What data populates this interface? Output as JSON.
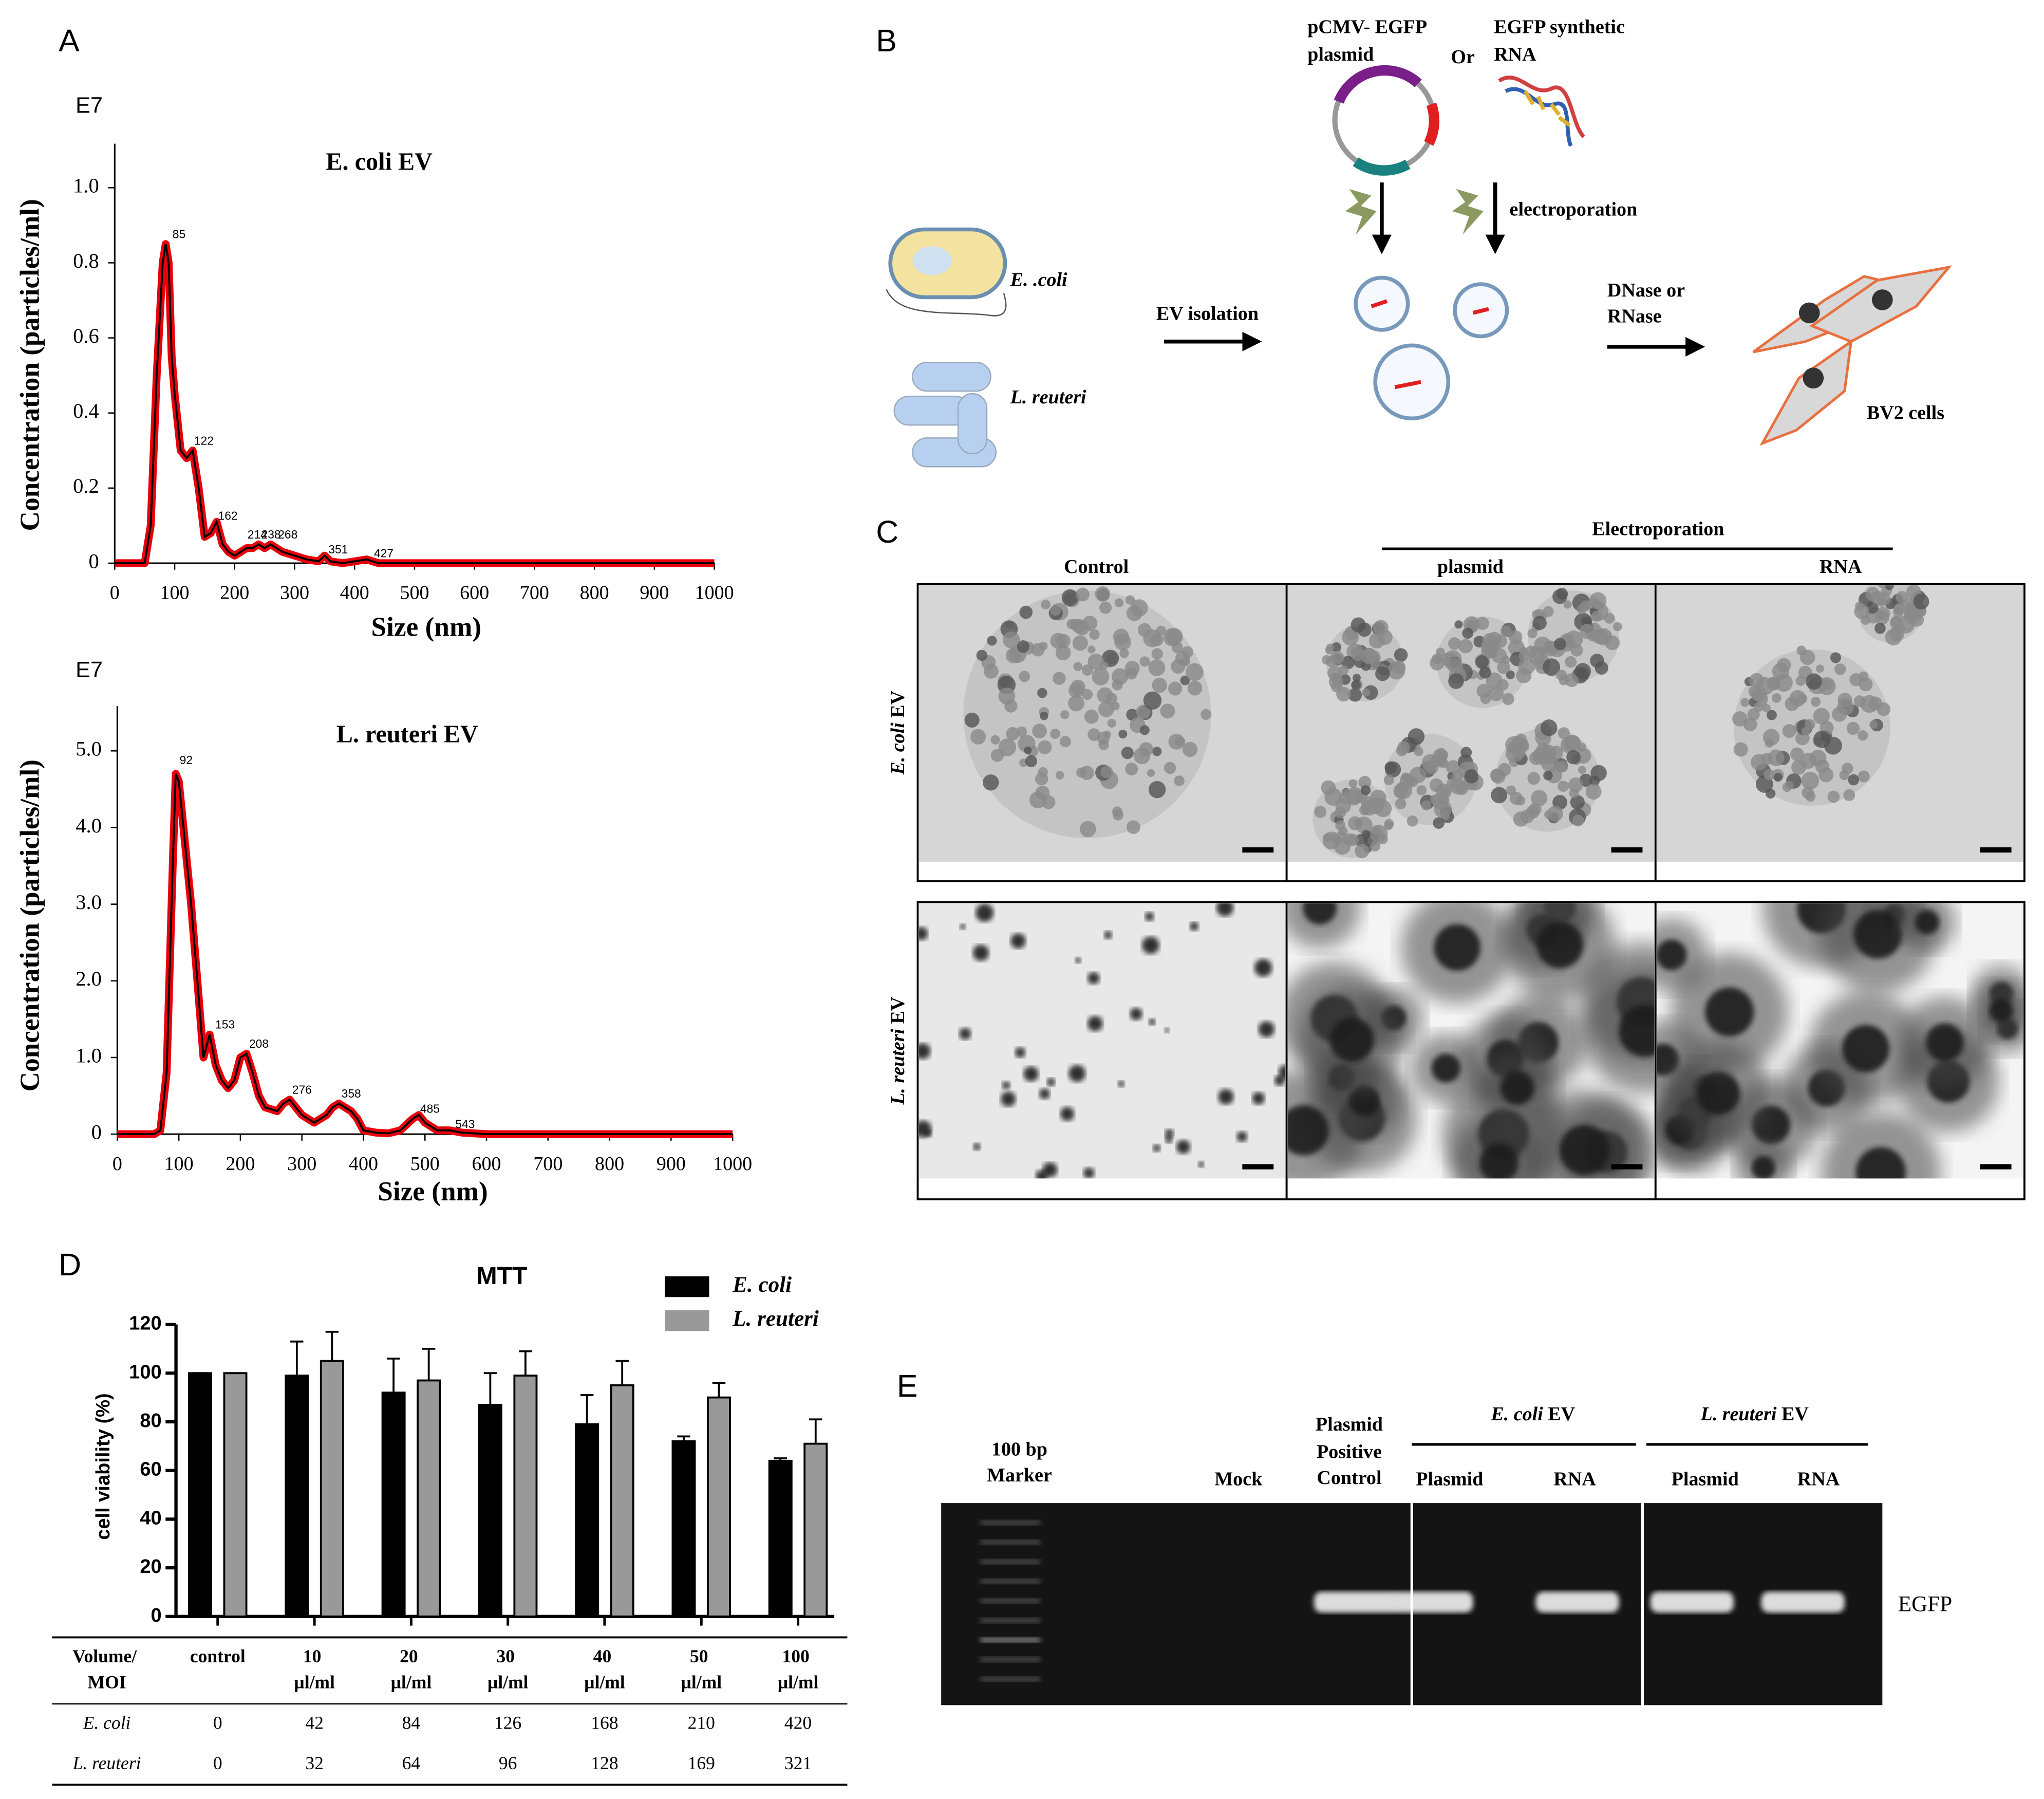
{
  "panel_a": "A",
  "panel_d": "D",
  "chart_data": [
    {
      "type": "line",
      "multiplier": "E7",
      "title": "E. coli EV",
      "xlabel": "Size (nm)",
      "ylabel": "Concentration (particles/ml)",
      "x": [
        0,
        50,
        60,
        70,
        80,
        85,
        90,
        95,
        100,
        110,
        120,
        130,
        140,
        150,
        160,
        170,
        180,
        190,
        200,
        210,
        220,
        230,
        240,
        250,
        260,
        270,
        280,
        300,
        320,
        340,
        350,
        360,
        380,
        400,
        420,
        430,
        440,
        460,
        500,
        600,
        1000
      ],
      "series": [
        {
          "color": "#000000",
          "band_color": "#e8000b",
          "values": [
            0,
            0,
            0.1,
            0.5,
            0.8,
            0.85,
            0.8,
            0.55,
            0.45,
            0.3,
            0.28,
            0.3,
            0.2,
            0.07,
            0.08,
            0.11,
            0.05,
            0.03,
            0.02,
            0.03,
            0.04,
            0.04,
            0.05,
            0.04,
            0.05,
            0.04,
            0.03,
            0.02,
            0.01,
            0.005,
            0.02,
            0.005,
            0,
            0.005,
            0.01,
            0.005,
            0,
            0,
            0,
            0,
            0
          ]
        }
      ],
      "annotations": [
        {
          "text": "85",
          "x": 92,
          "y": 0.86
        },
        {
          "text": "122",
          "x": 128,
          "y": 0.31
        },
        {
          "text": "162",
          "x": 168,
          "y": 0.11
        },
        {
          "text": "214",
          "x": 217,
          "y": 0.06
        },
        {
          "text": "238",
          "x": 240,
          "y": 0.06
        },
        {
          "text": "268",
          "x": 268,
          "y": 0.06
        },
        {
          "text": "351",
          "x": 352,
          "y": 0.02
        },
        {
          "text": "427",
          "x": 428,
          "y": 0.01
        }
      ],
      "xlim": [
        0,
        1000
      ],
      "xticks": [
        0,
        100,
        200,
        300,
        400,
        500,
        600,
        700,
        800,
        900,
        1000
      ],
      "ylim": [
        0,
        1.1
      ],
      "yticks": [
        0,
        0.2,
        0.4,
        0.6,
        0.8,
        {
          "value": 1,
          "label": "1.0"
        }
      ]
    },
    {
      "type": "line",
      "multiplier": "E7",
      "title": "L. reuteri EV",
      "xlabel": "Size (nm)",
      "ylabel": "Concentration (particles/ml)",
      "x": [
        0,
        60,
        70,
        80,
        90,
        95,
        100,
        110,
        120,
        130,
        140,
        150,
        160,
        170,
        180,
        190,
        200,
        210,
        220,
        230,
        240,
        260,
        270,
        280,
        290,
        300,
        320,
        340,
        350,
        360,
        380,
        390,
        400,
        420,
        440,
        460,
        480,
        490,
        500,
        520,
        540,
        560,
        600,
        1000
      ],
      "series": [
        {
          "color": "#000000",
          "band_color": "#e8000b",
          "values": [
            0,
            0,
            0.05,
            0.8,
            3.5,
            4.7,
            4.6,
            3.8,
            3.0,
            2.0,
            1.0,
            1.3,
            0.9,
            0.7,
            0.6,
            0.7,
            1.0,
            1.05,
            0.8,
            0.5,
            0.35,
            0.3,
            0.4,
            0.45,
            0.35,
            0.25,
            0.15,
            0.25,
            0.35,
            0.4,
            0.3,
            0.2,
            0.05,
            0.02,
            0.01,
            0.05,
            0.2,
            0.25,
            0.15,
            0.05,
            0.05,
            0.02,
            0,
            0
          ]
        }
      ],
      "annotations": [
        {
          "text": "92",
          "x": 97,
          "y": 4.8
        },
        {
          "text": "153",
          "x": 155,
          "y": 1.35
        },
        {
          "text": "208",
          "x": 210,
          "y": 1.1
        },
        {
          "text": "276",
          "x": 280,
          "y": 0.5
        },
        {
          "text": "358",
          "x": 360,
          "y": 0.45
        },
        {
          "text": "485",
          "x": 488,
          "y": 0.25
        },
        {
          "text": "543",
          "x": 545,
          "y": 0.05
        }
      ],
      "xlim": [
        0,
        1000
      ],
      "xticks": [
        0,
        100,
        200,
        300,
        400,
        500,
        600,
        700,
        800,
        900,
        1000
      ],
      "ylim": [
        0,
        5.5
      ],
      "yticks": [
        0,
        {
          "value": 1,
          "label": "1.0"
        },
        {
          "value": 2,
          "label": "2.0"
        },
        {
          "value": 3,
          "label": "3.0"
        },
        {
          "value": 4,
          "label": "4.0"
        },
        {
          "value": 5,
          "label": "5.0"
        }
      ]
    },
    {
      "type": "bar",
      "title": "MTT",
      "ylabel": "cell viability (%)",
      "categories": [
        "control",
        "10 µl/ml",
        "20 µl/ml",
        "30 µl/ml",
        "40 µl/ml",
        "50 µl/ml",
        "100 µl/ml"
      ],
      "series": [
        {
          "name": "E. coli",
          "color": "#000000",
          "values": [
            100,
            99,
            92,
            87,
            79,
            72,
            64
          ],
          "errors": [
            0,
            14,
            14,
            13,
            12,
            2,
            1
          ]
        },
        {
          "name": "L. reuteri",
          "color": "#999999",
          "values": [
            100,
            105,
            97,
            99,
            95,
            90,
            71
          ],
          "errors": [
            0,
            12,
            13,
            10,
            10,
            6,
            10
          ]
        }
      ],
      "ylim": [
        0,
        120
      ],
      "yticks": [
        0,
        20,
        40,
        60,
        80,
        100,
        120
      ],
      "table": {
        "header": "Volume/ MOI",
        "rows": [
          {
            "label": "E. coli",
            "values": [
              0,
              42,
              84,
              126,
              168,
              210,
              420
            ]
          },
          {
            "label": "L. reuteri",
            "values": [
              0,
              32,
              64,
              96,
              128,
              169,
              321
            ]
          }
        ]
      }
    }
  ],
  "diagram": {
    "label": "B",
    "plasmid": [
      "pCMV- EGFP",
      "plasmid"
    ],
    "or": "Or",
    "rna": [
      "EGFP synthetic",
      "RNA"
    ],
    "electroporation": "electroporation",
    "ecoli": "E. .coli",
    "lreuteri": "L. reuteri",
    "isolation": "EV isolation",
    "nuclease": [
      "DNase or",
      "RNase"
    ],
    "cells": "BV2 cells"
  },
  "micrographs": {
    "label": "C",
    "group": "Electroporation",
    "columns": [
      "Control",
      "plasmid",
      "RNA"
    ],
    "rows": [
      "E. coli EV",
      "L. reuteri EV"
    ]
  },
  "gel": {
    "label": "E",
    "marker": [
      "100 bp",
      "Marker"
    ],
    "mock": "Mock",
    "positive": [
      "Plasmid",
      "Positive",
      "Control"
    ],
    "groups": [
      "E. coli EV",
      "L. reuteri EV"
    ],
    "lanes": [
      "Plasmid",
      "RNA",
      "Plasmid",
      "RNA"
    ],
    "band": "EGFP"
  }
}
